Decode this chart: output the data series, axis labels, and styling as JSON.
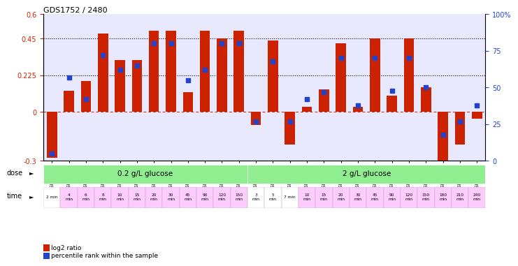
{
  "title": "GDS1752 / 2480",
  "samples": [
    "GSM95003",
    "GSM95005",
    "GSM95007",
    "GSM95009",
    "GSM95010",
    "GSM95011",
    "GSM95012",
    "GSM95013",
    "GSM95002",
    "GSM95004",
    "GSM95006",
    "GSM95008",
    "GSM94995",
    "GSM94997",
    "GSM94999",
    "GSM94988",
    "GSM94989",
    "GSM94991",
    "GSM94992",
    "GSM94993",
    "GSM94994",
    "GSM94996",
    "GSM94998",
    "GSM95000",
    "GSM95001",
    "GSM94990"
  ],
  "log2_ratio": [
    -0.28,
    0.13,
    0.19,
    0.48,
    0.32,
    0.32,
    0.5,
    0.5,
    0.12,
    0.5,
    0.45,
    0.5,
    -0.08,
    0.44,
    -0.2,
    0.03,
    0.14,
    0.42,
    0.03,
    0.45,
    0.1,
    0.45,
    0.15,
    -0.31,
    -0.2,
    -0.04
  ],
  "percentile": [
    5,
    57,
    42,
    72,
    62,
    65,
    80,
    80,
    55,
    62,
    80,
    80,
    27,
    68,
    27,
    42,
    47,
    70,
    38,
    70,
    48,
    70,
    50,
    18,
    27,
    38
  ],
  "time_labels": [
    "2 min",
    "4\nmin",
    "6\nmin",
    "8\nmin",
    "10\nmin",
    "15\nmin",
    "20\nmin",
    "30\nmin",
    "45\nmin",
    "90\nmin",
    "120\nmin",
    "150\nmin",
    "3\nmin",
    "5\nmin",
    "7 min",
    "10\nmin",
    "15\nmin",
    "20\nmin",
    "30\nmin",
    "45\nmin",
    "90\nmin",
    "120\nmin",
    "150\nmin",
    "180\nmin",
    "210\nmin",
    "240\nmin"
  ],
  "time_colors": [
    "#ffffff",
    "#ffccff",
    "#ffccff",
    "#ffccff",
    "#ffccff",
    "#ffccff",
    "#ffccff",
    "#ffccff",
    "#ffccff",
    "#ffccff",
    "#ffccff",
    "#ffccff",
    "#ffffff",
    "#ffffff",
    "#ffffff",
    "#ffccff",
    "#ffccff",
    "#ffccff",
    "#ffccff",
    "#ffccff",
    "#ffccff",
    "#ffccff",
    "#ffccff",
    "#ffccff",
    "#ffccff",
    "#ffccff"
  ],
  "bar_color": "#cc2200",
  "dot_color": "#2244cc",
  "ylim_left": [
    -0.3,
    0.6
  ],
  "ylim_right": [
    0,
    100
  ],
  "yticks_left": [
    -0.3,
    0.0,
    0.225,
    0.45,
    0.6
  ],
  "ytick_left_labels": [
    "-0.3",
    "0",
    "0.225",
    "0.45",
    "0.6"
  ],
  "yticks_right": [
    0,
    25,
    50,
    75,
    100
  ],
  "ytick_right_labels": [
    "0",
    "25",
    "50",
    "75",
    "100%"
  ],
  "hlines": [
    0.225,
    0.45
  ],
  "background_color": "#e8e8ff",
  "dose1_label": "0.2 g/L glucose",
  "dose2_label": "2 g/L glucose",
  "dose_color": "#90ee90",
  "legend_label1": "log2 ratio",
  "legend_label2": "percentile rank within the sample"
}
